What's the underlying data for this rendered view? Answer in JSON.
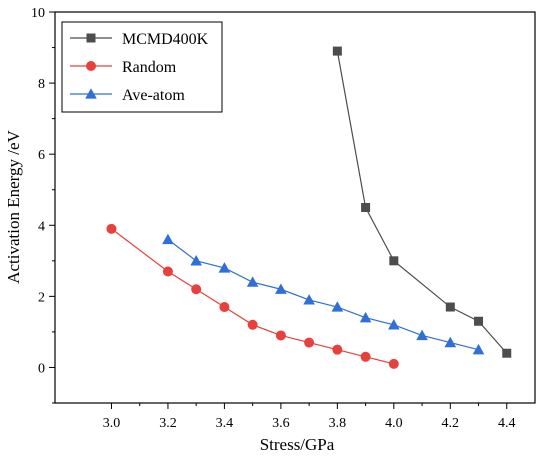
{
  "chart_data": {
    "type": "line",
    "title": "",
    "xlabel": "Stress/GPa",
    "ylabel": "Activation Energy /eV",
    "xlim": [
      2.8,
      4.5
    ],
    "ylim": [
      -1,
      10
    ],
    "xticks": [
      3.0,
      3.2,
      3.4,
      3.6,
      3.8,
      4.0,
      4.2,
      4.4
    ],
    "xtick_labels": [
      "3.0",
      "3.2",
      "3.4",
      "3.6",
      "3.8",
      "4.0",
      "4.2",
      "4.4"
    ],
    "yticks": [
      0,
      2,
      4,
      6,
      8,
      10
    ],
    "ytick_labels": [
      "0",
      "2",
      "4",
      "6",
      "8",
      "10"
    ],
    "grid": false,
    "legend_position": "top-left",
    "series": [
      {
        "name": "MCMD400K",
        "marker": "square",
        "color": "#4d4d4d",
        "x": [
          3.8,
          3.9,
          4.0,
          4.2,
          4.3,
          4.4
        ],
        "y": [
          8.9,
          4.5,
          3.0,
          1.7,
          1.3,
          0.4
        ]
      },
      {
        "name": "Random",
        "marker": "circle",
        "color": "#e8403c",
        "x": [
          3.0,
          3.2,
          3.3,
          3.4,
          3.5,
          3.6,
          3.7,
          3.8,
          3.9,
          4.0
        ],
        "y": [
          3.9,
          2.7,
          2.2,
          1.7,
          1.2,
          0.9,
          0.7,
          0.5,
          0.3,
          0.1
        ]
      },
      {
        "name": "Ave-atom",
        "marker": "triangle",
        "color": "#2e6fd8",
        "x": [
          3.2,
          3.3,
          3.4,
          3.5,
          3.6,
          3.7,
          3.8,
          3.9,
          4.0,
          4.1,
          4.2,
          4.3
        ],
        "y": [
          3.6,
          3.0,
          2.8,
          2.4,
          2.2,
          1.9,
          1.7,
          1.4,
          1.2,
          0.9,
          0.7,
          0.5
        ]
      }
    ]
  }
}
